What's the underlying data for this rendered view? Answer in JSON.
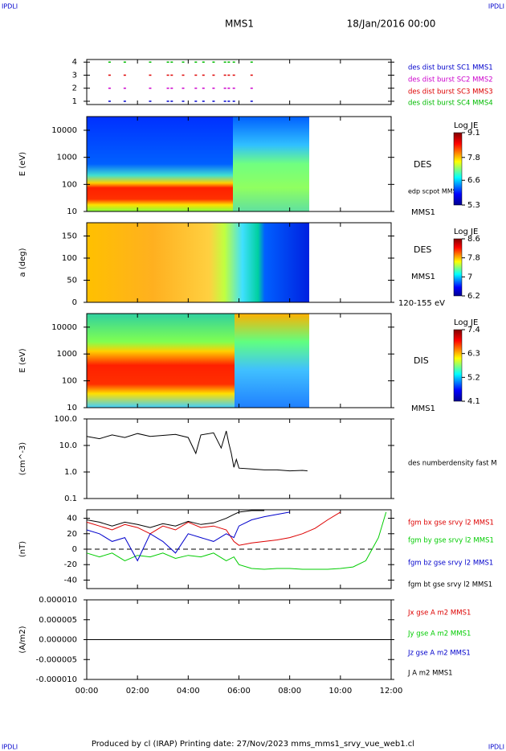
{
  "header": {
    "left": "IPDLI",
    "right": "IPDLI",
    "title": "MMS1",
    "date": "18/Jan/2016 00:00"
  },
  "footer": {
    "left": "IPDLI",
    "right": "IPDLI",
    "text": "Produced by cl (IRAP)   Printing date: 27/Nov/2023   mms_mms1_srvy_vue_web1.cl"
  },
  "chart_data": [
    {
      "type": "scatter",
      "ylim": [
        0.75,
        4.2
      ],
      "yticks": [
        1,
        2,
        3,
        4
      ],
      "series": [
        {
          "name": "des dist burst SC1 MMS1",
          "color": "#0000cc",
          "x": [
            0.9,
            1.5,
            2.5,
            3.2,
            3.35,
            3.8,
            4.3,
            4.6,
            5.0,
            5.45,
            5.6,
            5.8,
            6.5
          ],
          "values": [
            1,
            1,
            1,
            1,
            1,
            1,
            1,
            1,
            1,
            1,
            1,
            1,
            1
          ]
        },
        {
          "name": "des dist burst SC2 MMS2",
          "color": "#cc00cc",
          "x": [
            0.9,
            1.5,
            2.5,
            3.2,
            3.35,
            3.8,
            4.3,
            4.6,
            5.0,
            5.45,
            5.6,
            5.8,
            6.5
          ],
          "values": [
            2,
            2,
            2,
            2,
            2,
            2,
            2,
            2,
            2,
            2,
            2,
            2,
            2
          ]
        },
        {
          "name": "des dist burst SC3 MMS3",
          "color": "#dd0000",
          "x": [
            0.9,
            1.5,
            2.5,
            3.2,
            3.35,
            3.8,
            4.3,
            4.6,
            5.0,
            5.45,
            5.6,
            5.8,
            6.5
          ],
          "values": [
            3,
            3,
            3,
            3,
            3,
            3,
            3,
            3,
            3,
            3,
            3,
            3,
            3
          ]
        },
        {
          "name": "des dist burst SC4 MMS4",
          "color": "#00bb00",
          "x": [
            0.9,
            1.5,
            2.5,
            3.2,
            3.35,
            3.8,
            4.3,
            4.6,
            5.0,
            5.45,
            5.6,
            5.8,
            6.5
          ],
          "values": [
            4,
            4,
            4,
            4,
            4,
            4,
            4,
            4,
            4,
            4,
            4,
            4,
            4
          ]
        }
      ]
    },
    {
      "type": "heatmap",
      "ylabel": "E (eV)",
      "log": true,
      "ylim": [
        10,
        32000
      ],
      "yticks": [
        10,
        100,
        1000,
        10000
      ],
      "labels": [
        "DES",
        "edp scpot MMS1",
        "MMS1"
      ],
      "colorbar": {
        "title": "Log JE",
        "ticks": [
          9.1,
          7.8,
          6.6,
          5.3
        ]
      }
    },
    {
      "type": "heatmap",
      "ylabel": "a (deg)",
      "ylim": [
        0,
        180
      ],
      "yticks": [
        0,
        50,
        100,
        150
      ],
      "labels": [
        "DES",
        "MMS1",
        "120-155 eV"
      ],
      "colorbar": {
        "title": "Log JE",
        "ticks": [
          8.6,
          7.8,
          7.0,
          6.2
        ]
      }
    },
    {
      "type": "heatmap",
      "ylabel": "E (eV)",
      "log": true,
      "ylim": [
        10,
        32000
      ],
      "yticks": [
        10,
        100,
        1000,
        10000
      ],
      "labels": [
        "DIS",
        "MMS1"
      ],
      "colorbar": {
        "title": "Log JE",
        "ticks": [
          7.4,
          6.3,
          5.2,
          4.1
        ]
      }
    },
    {
      "type": "line",
      "ylabel": "(cm^-3)",
      "log": true,
      "ylim": [
        0.1,
        100
      ],
      "yticks": [
        {
          "value": 100,
          "label": "100.0"
        },
        {
          "value": 10,
          "label": "10.0"
        },
        {
          "value": 1,
          "label": "1.0"
        },
        {
          "value": 0.1,
          "label": "0.1"
        }
      ],
      "x": [
        0,
        0.5,
        1,
        1.5,
        2,
        2.5,
        3,
        3.5,
        4,
        4.3,
        4.5,
        5,
        5.3,
        5.5,
        5.6,
        5.7,
        5.8,
        5.9,
        6,
        6.5,
        7,
        7.5,
        8,
        8.5,
        8.7
      ],
      "series": [
        {
          "name": "des numberdensity fast M",
          "color": "#000000",
          "values": [
            22,
            18,
            25,
            20,
            28,
            22,
            24,
            26,
            20,
            5,
            25,
            30,
            8,
            35,
            12,
            5,
            1.5,
            3,
            1.4,
            1.3,
            1.2,
            1.2,
            1.1,
            1.15,
            1.1
          ]
        }
      ]
    },
    {
      "type": "line",
      "ylabel": "(nT)",
      "ylim": [
        -51,
        51
      ],
      "yticks": [
        40,
        20,
        0,
        -20,
        -40
      ],
      "x": [
        0,
        0.5,
        1,
        1.5,
        2,
        2.5,
        3,
        3.5,
        4,
        4.5,
        5,
        5.5,
        5.8,
        6,
        6.5,
        7,
        7.5,
        8,
        8.5,
        9,
        9.5,
        10,
        10.5,
        11,
        11.5,
        11.8
      ],
      "series": [
        {
          "name": "fgm bx gse srvy l2 MMS1",
          "color": "#dd0000",
          "values": [
            35,
            30,
            25,
            32,
            28,
            20,
            30,
            25,
            35,
            28,
            30,
            25,
            10,
            5,
            8,
            10,
            12,
            15,
            20,
            27,
            38,
            48,
            null,
            null,
            null,
            null
          ]
        },
        {
          "name": "fgm by gse srvy l2 MMS1",
          "color": "#00cc00",
          "values": [
            -5,
            -10,
            -5,
            -15,
            -8,
            -10,
            -5,
            -12,
            -8,
            -10,
            -5,
            -15,
            -10,
            -20,
            -25,
            -26,
            -25,
            -25,
            -26,
            -26,
            -26,
            -25,
            -23,
            -15,
            15,
            48
          ]
        },
        {
          "name": "fgm bz gse srvy l2 MMS1",
          "color": "#0000cc",
          "values": [
            25,
            20,
            10,
            15,
            -15,
            20,
            10,
            -5,
            20,
            15,
            10,
            20,
            15,
            30,
            38,
            42,
            45,
            48,
            null,
            null,
            null,
            null,
            null,
            null,
            null,
            null
          ]
        },
        {
          "name": "fgm bt gse srvy l2 MMS1",
          "color": "#000000",
          "values": [
            38,
            35,
            30,
            35,
            32,
            28,
            33,
            30,
            36,
            32,
            34,
            40,
            45,
            48,
            50,
            50,
            null,
            null,
            null,
            null,
            null,
            null,
            null,
            null,
            null,
            null
          ]
        }
      ]
    },
    {
      "type": "line",
      "ylabel": "(A/m2)",
      "ylim": [
        -1e-05,
        1e-05
      ],
      "yticks": [
        {
          "value": 1e-05,
          "label": "0.000010"
        },
        {
          "value": 5e-06,
          "label": "0.000005"
        },
        {
          "value": 0,
          "label": "0.000000"
        },
        {
          "value": -5e-06,
          "label": "-0.000005"
        },
        {
          "value": -1e-05,
          "label": "-0.000010"
        }
      ],
      "x": [
        0,
        4,
        8.7,
        12
      ],
      "xlim": [
        0,
        12
      ],
      "xticks": [
        {
          "value": 0,
          "label": "00:00"
        },
        {
          "value": 2,
          "label": "02:00"
        },
        {
          "value": 4,
          "label": "04:00"
        },
        {
          "value": 6,
          "label": "06:00"
        },
        {
          "value": 8,
          "label": "08:00"
        },
        {
          "value": 10,
          "label": "10:00"
        },
        {
          "value": 12,
          "label": "12:00"
        }
      ],
      "series": [
        {
          "name": "Jx gse A m2 MMS1",
          "color": "#dd0000",
          "values": [
            0,
            0,
            0,
            null
          ]
        },
        {
          "name": "Jy gse A m2 MMS1",
          "color": "#00cc00",
          "values": [
            0,
            0,
            0,
            null
          ]
        },
        {
          "name": "Jz gse A m2 MMS1",
          "color": "#0000cc",
          "values": [
            0,
            0,
            0,
            null
          ]
        },
        {
          "name": "J A m2 MMS1",
          "color": "#000000",
          "values": [
            0,
            0,
            0,
            0
          ]
        }
      ]
    }
  ]
}
